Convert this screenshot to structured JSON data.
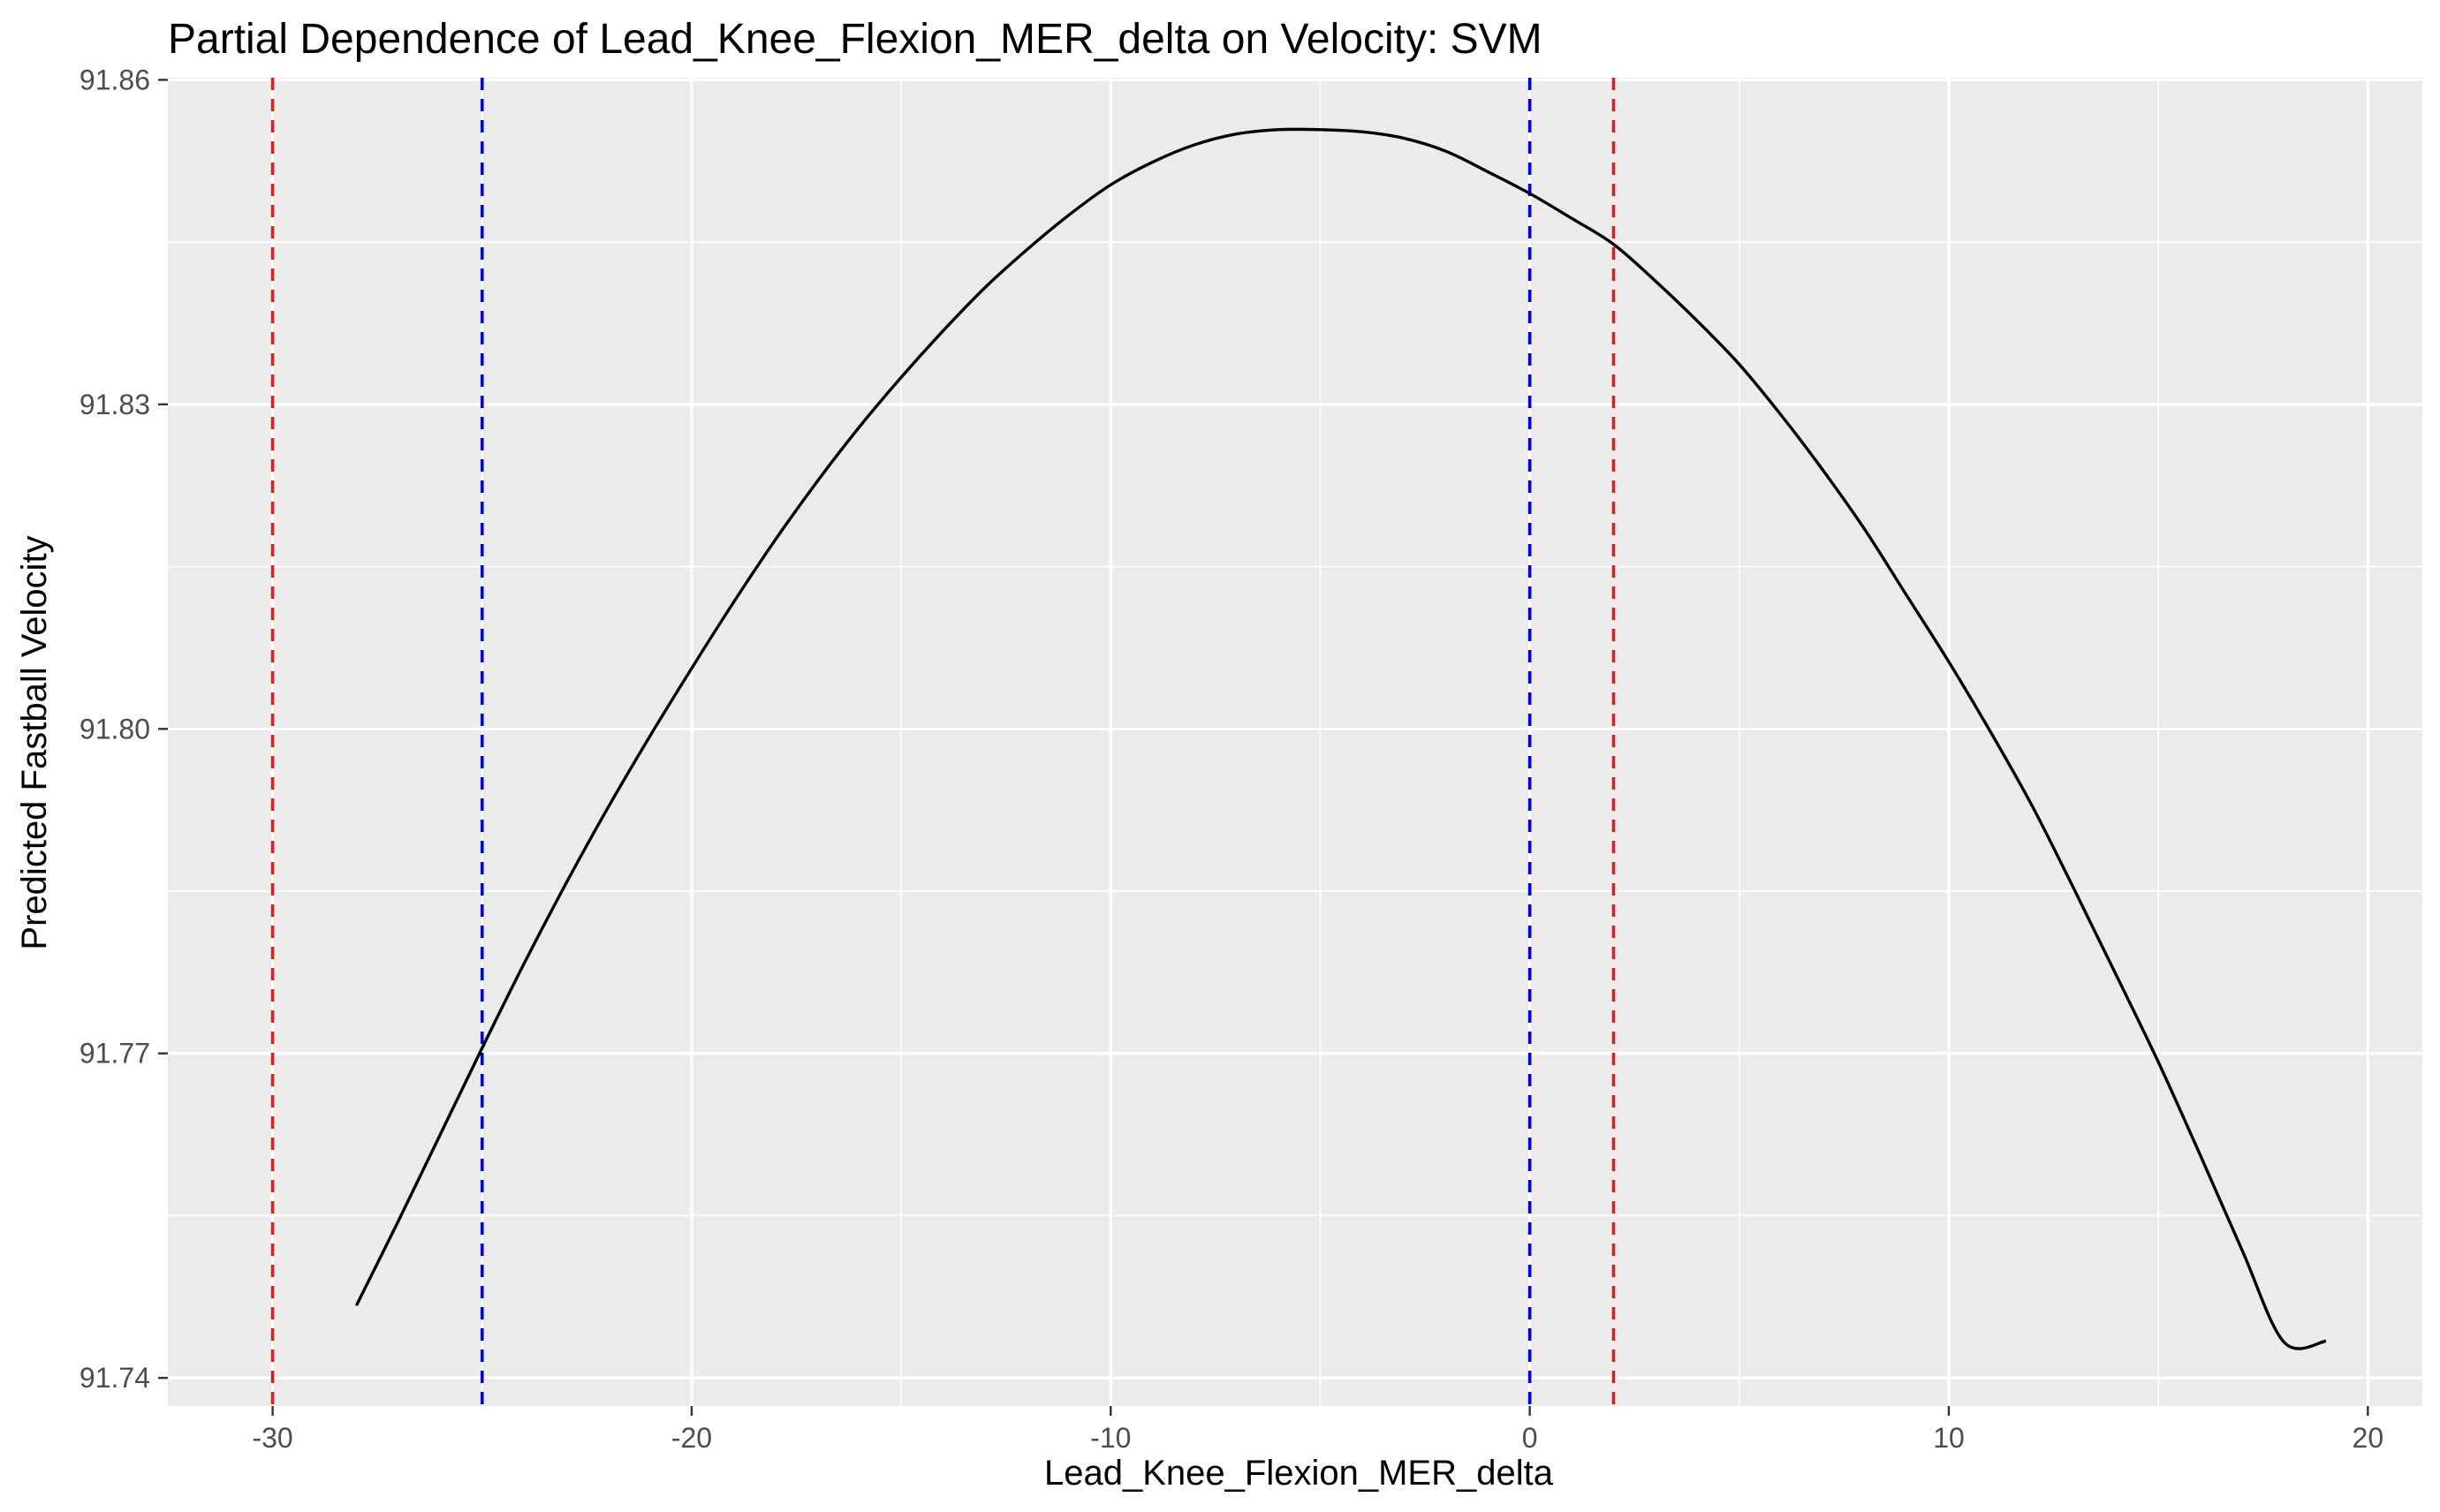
{
  "chart_data": {
    "type": "line",
    "title": "Partial Dependence of Lead_Knee_Flexion_MER_delta on Velocity: SVM",
    "xlabel": "Lead_Knee_Flexion_MER_delta",
    "ylabel": "Predicted Fastball Velocity",
    "xlim": [
      -32.5,
      21.3
    ],
    "ylim": [
      91.7374,
      91.8602
    ],
    "x_ticks": [
      -30,
      -20,
      -10,
      0,
      10,
      20
    ],
    "x_tick_labels": [
      "-30",
      "-20",
      "-10",
      "0",
      "10",
      "20"
    ],
    "x_minor_ticks": [
      -25,
      -15,
      -5,
      5,
      15
    ],
    "y_ticks": [
      91.74,
      91.77,
      91.8,
      91.83,
      91.86
    ],
    "y_tick_labels": [
      "91.74",
      "91.77",
      "91.80",
      "91.83",
      "91.86"
    ],
    "y_minor_ticks": [
      91.755,
      91.785,
      91.815,
      91.845
    ],
    "grid": true,
    "series": [
      {
        "values_x": [
          -28,
          -27,
          -26,
          -25,
          -24,
          -23,
          -22,
          -21,
          -20,
          -19,
          -18,
          -17,
          -16,
          -15,
          -14,
          -13,
          -12,
          -11,
          -10,
          -9,
          -8,
          -7,
          -6,
          -5,
          -4,
          -3,
          -2,
          -1,
          0,
          1,
          2,
          3,
          4,
          5,
          6,
          7,
          8,
          9,
          10,
          11,
          12,
          13,
          14,
          15,
          16,
          17,
          18,
          19
        ],
        "values_y": [
          91.7467,
          91.7545,
          91.7625,
          91.7705,
          91.7783,
          91.7857,
          91.7927,
          91.7993,
          91.8056,
          91.8117,
          91.8175,
          91.8229,
          91.8279,
          91.8325,
          91.8368,
          91.8408,
          91.8443,
          91.8475,
          91.8503,
          91.8524,
          91.854,
          91.855,
          91.8554,
          91.8554,
          91.8552,
          91.8546,
          91.8534,
          91.8515,
          91.8495,
          91.8472,
          91.8448,
          91.8414,
          91.8377,
          91.8337,
          91.829,
          91.8239,
          91.8184,
          91.8123,
          91.8062,
          91.7997,
          91.7928,
          91.7851,
          91.7772,
          91.7692,
          91.7606,
          91.7518,
          91.7433,
          91.7434
        ],
        "color": "#000000"
      }
    ],
    "reference_lines": [
      {
        "x": -30,
        "color": "#e41a1c",
        "style": "dashed"
      },
      {
        "x": -25,
        "color": "#0000cc",
        "style": "dashed"
      },
      {
        "x": 0,
        "color": "#0000cc",
        "style": "dashed"
      },
      {
        "x": 2,
        "color": "#e41a1c",
        "style": "dashed"
      }
    ]
  }
}
